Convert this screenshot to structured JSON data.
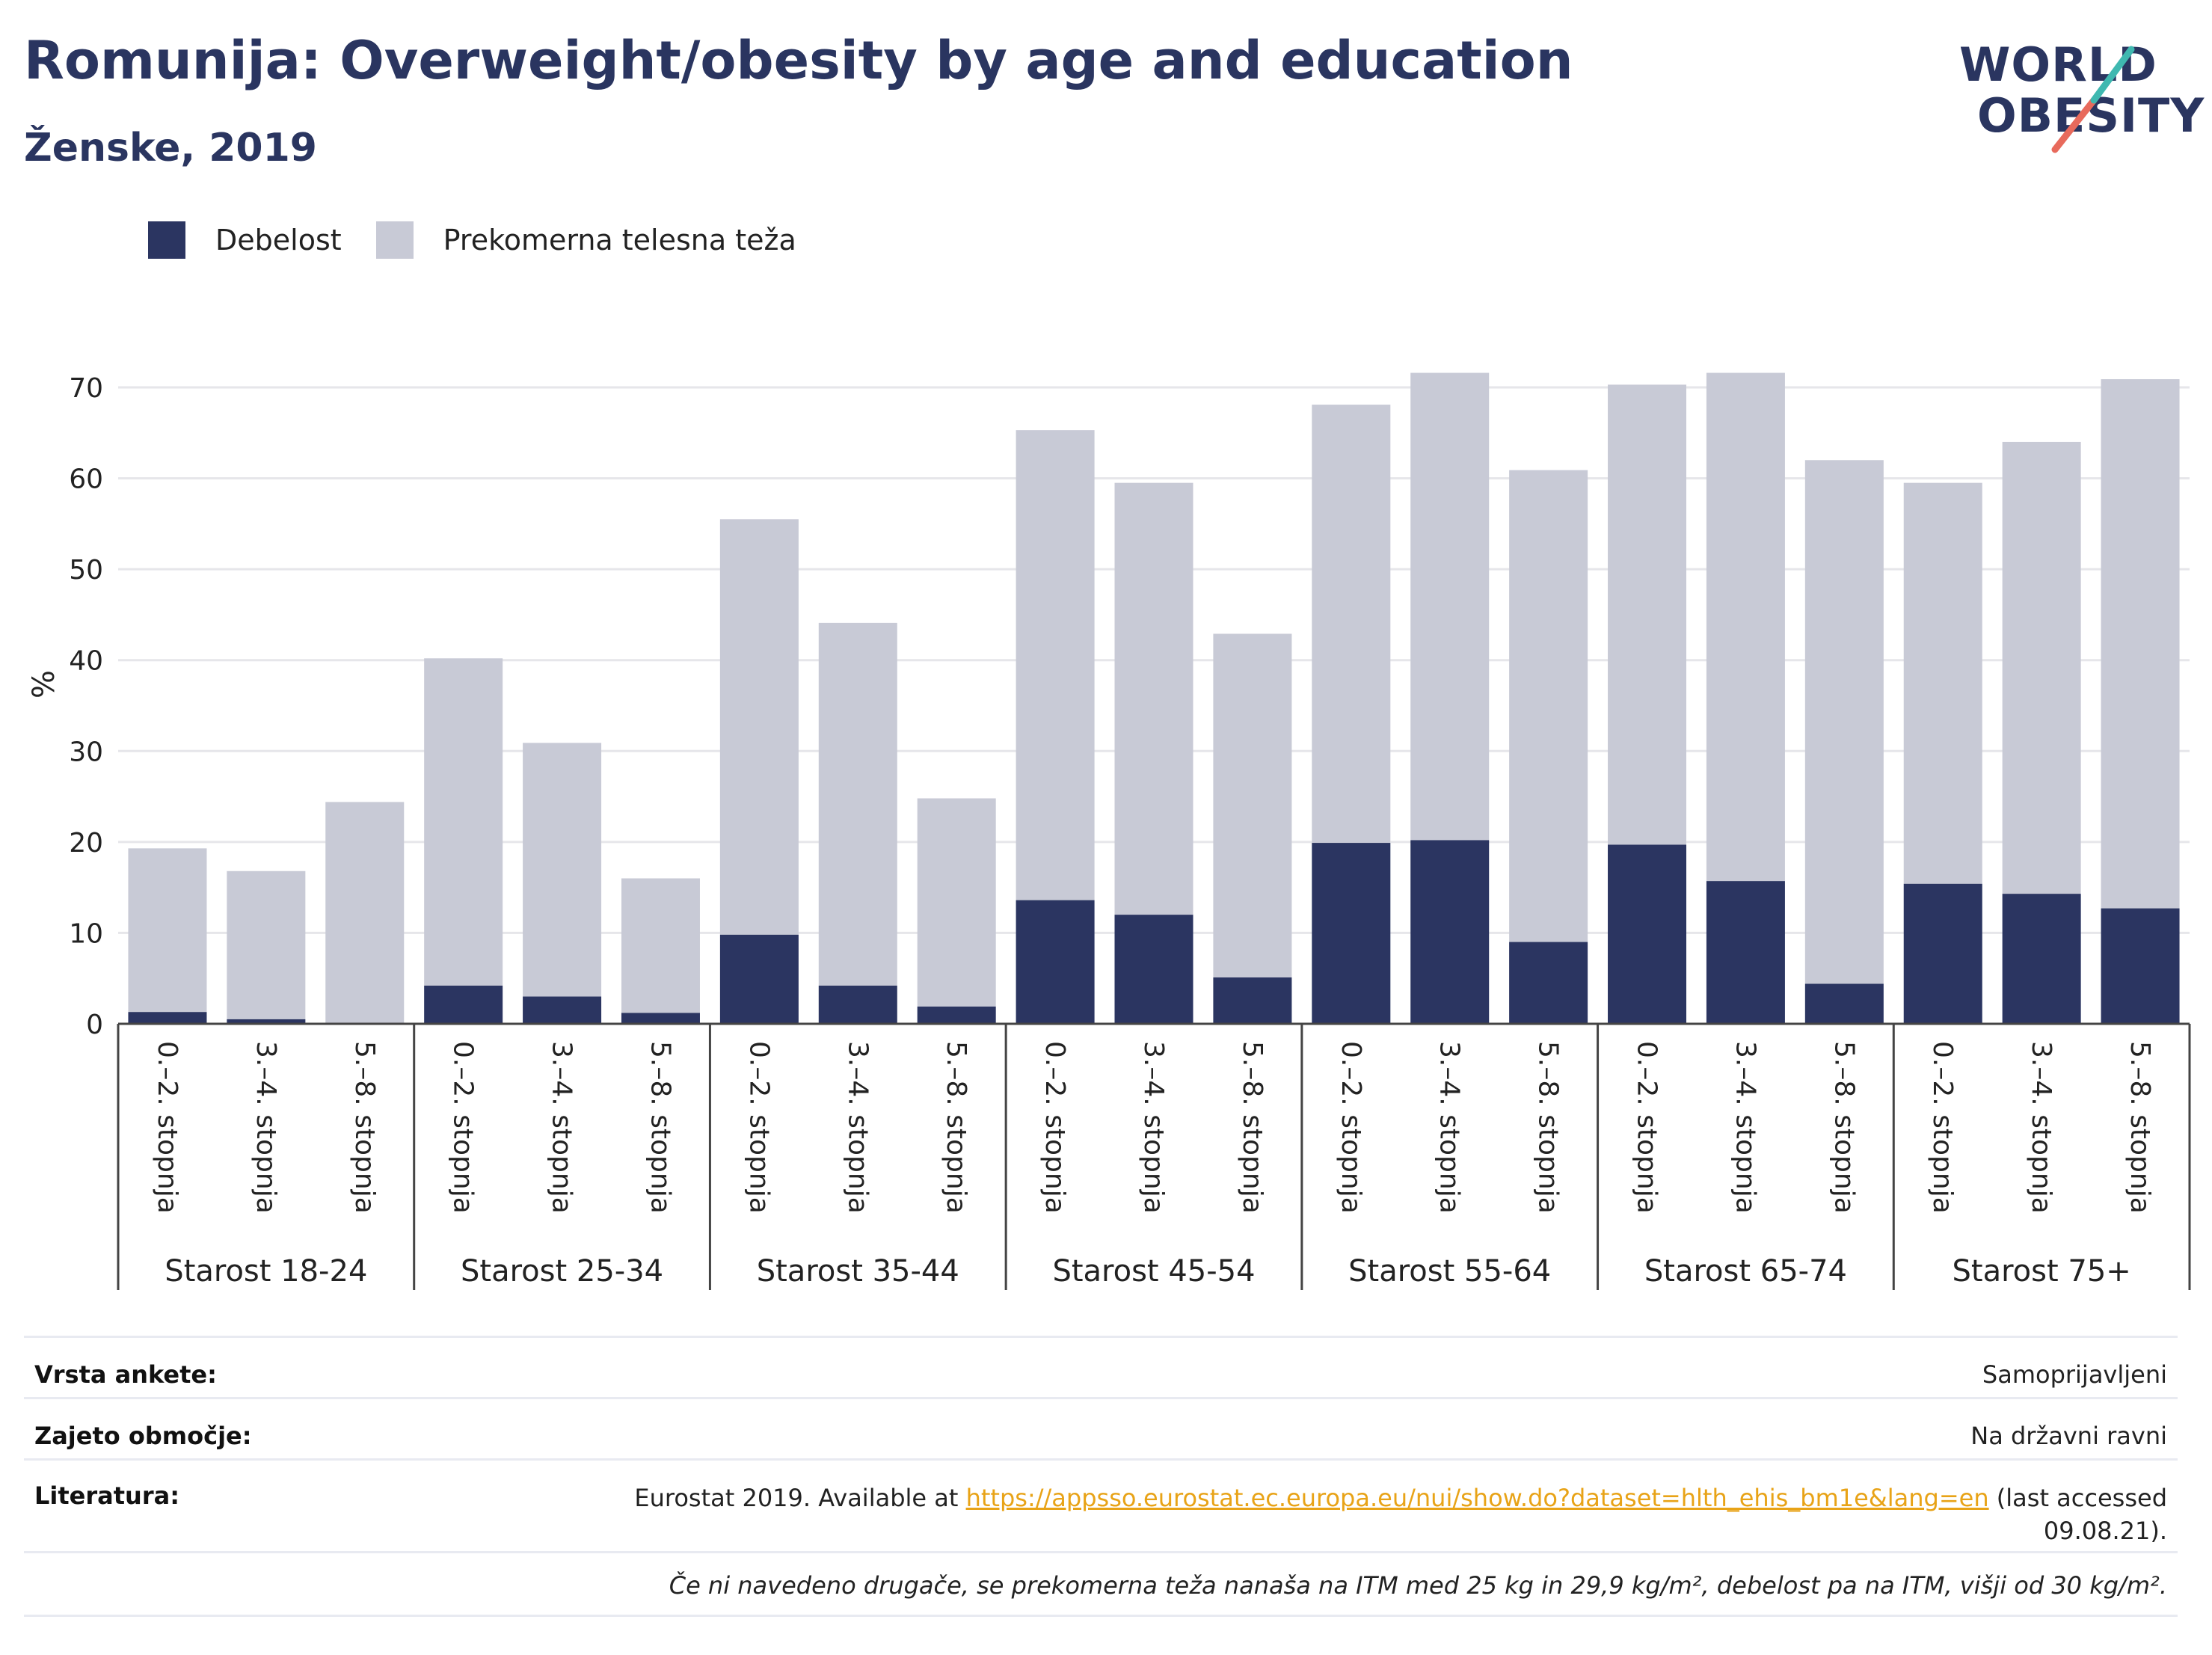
{
  "header": {
    "title": "Romunija: Overweight/obesity by age and education",
    "subtitle": "Ženske, 2019"
  },
  "logo": {
    "line1": "WORLD",
    "line2": "OBESITY"
  },
  "colors": {
    "obesity": "#2b3561",
    "overweight": "#c8cad6",
    "accent_teal": "#3fb8b0",
    "accent_red": "#e86a5c"
  },
  "chart_data": {
    "type": "bar",
    "stacked": true,
    "ylabel": "%",
    "ylim": [
      0,
      70
    ],
    "yticks": [
      0,
      10,
      20,
      30,
      40,
      50,
      60,
      70
    ],
    "grid": true,
    "legend_position": "top-left",
    "groups": [
      "Starost 18-24",
      "Starost 25-34",
      "Starost 35-44",
      "Starost 45-54",
      "Starost 55-64",
      "Starost 65-74",
      "Starost 75+"
    ],
    "subcategories": [
      "0.–2. stopnja",
      "3.–4. stopnja",
      "5.–8. stopnja"
    ],
    "series": [
      {
        "name": "Debelost",
        "color": "#2b3561",
        "values": [
          1.3,
          0.5,
          0.0,
          4.2,
          3.0,
          1.2,
          9.8,
          4.2,
          1.9,
          13.6,
          12.0,
          5.1,
          19.9,
          20.2,
          9.0,
          19.7,
          15.7,
          4.4,
          15.4,
          14.3,
          12.7
        ]
      },
      {
        "name": "Prekomerna telesna teža",
        "color": "#c8cad6",
        "values": [
          18.0,
          16.3,
          24.4,
          36.0,
          27.9,
          14.8,
          45.7,
          39.9,
          22.9,
          51.7,
          47.5,
          37.8,
          48.2,
          51.4,
          51.9,
          50.6,
          55.9,
          57.6,
          44.1,
          49.7,
          58.2
        ]
      }
    ]
  },
  "meta": {
    "survey_key": "Vrsta ankete:",
    "survey_val": "Samoprijavljeni",
    "area_key": "Zajeto območje:",
    "area_val": "Na državni ravni",
    "lit_key": "Literatura:",
    "lit_prefix": "Eurostat 2019. Available at ",
    "lit_link": "https://appsso.eurostat.ec.europa.eu/nui/show.do?dataset=hlth_ehis_bm1e&lang=en",
    "lit_suffix": " (last accessed",
    "lit_date": "09.08.21).",
    "note": "Če ni navedeno drugače, se prekomerna teža nanaša na ITM med 25 kg in 29,9 kg/m², debelost pa na ITM, višji od 30 kg/m²."
  }
}
